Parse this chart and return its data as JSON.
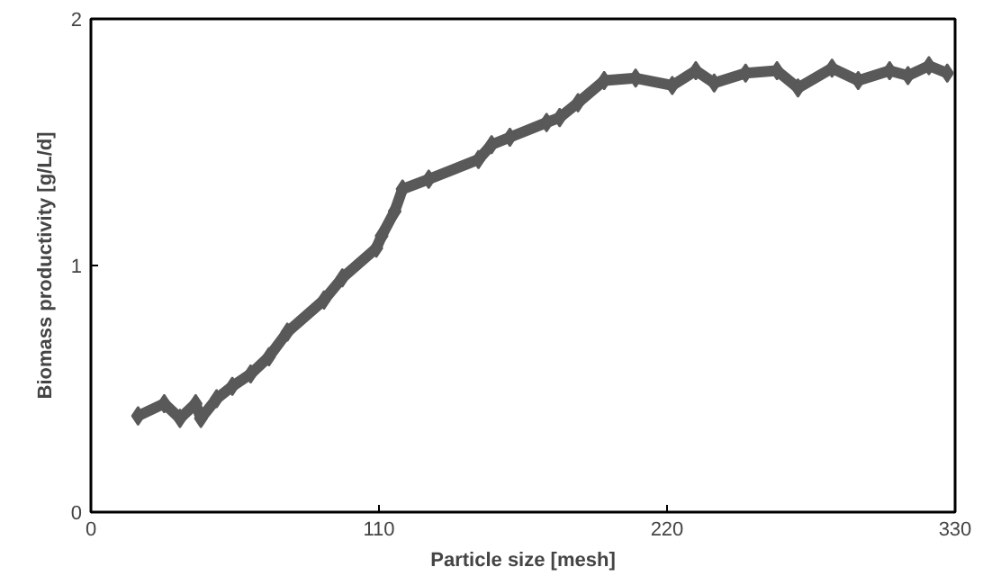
{
  "chart_data": {
    "type": "line",
    "xlabel": "Particle size [mesh]",
    "ylabel": "Biomass productivity [g/L/d]",
    "xlim": [
      0,
      330
    ],
    "ylim": [
      0,
      2
    ],
    "xticks": [
      0,
      110,
      220,
      330
    ],
    "yticks": [
      0,
      1,
      2
    ],
    "grid": false,
    "marker": "diamond",
    "line_style": "solid",
    "series": [
      {
        "color": "#595959",
        "x": [
          18,
          28,
          34,
          40,
          42,
          48,
          54,
          61,
          68,
          75,
          89,
          96,
          109,
          111,
          116,
          119,
          129,
          148,
          153,
          160,
          174,
          179,
          186,
          196,
          208,
          222,
          231,
          238,
          250,
          262,
          270,
          283,
          293,
          305,
          312,
          320,
          327
        ],
        "values": [
          0.39,
          0.44,
          0.38,
          0.44,
          0.38,
          0.46,
          0.51,
          0.56,
          0.63,
          0.73,
          0.86,
          0.95,
          1.07,
          1.12,
          1.22,
          1.31,
          1.35,
          1.43,
          1.49,
          1.52,
          1.58,
          1.6,
          1.66,
          1.75,
          1.76,
          1.73,
          1.79,
          1.74,
          1.78,
          1.79,
          1.72,
          1.8,
          1.75,
          1.79,
          1.77,
          1.81,
          1.78
        ]
      }
    ]
  }
}
